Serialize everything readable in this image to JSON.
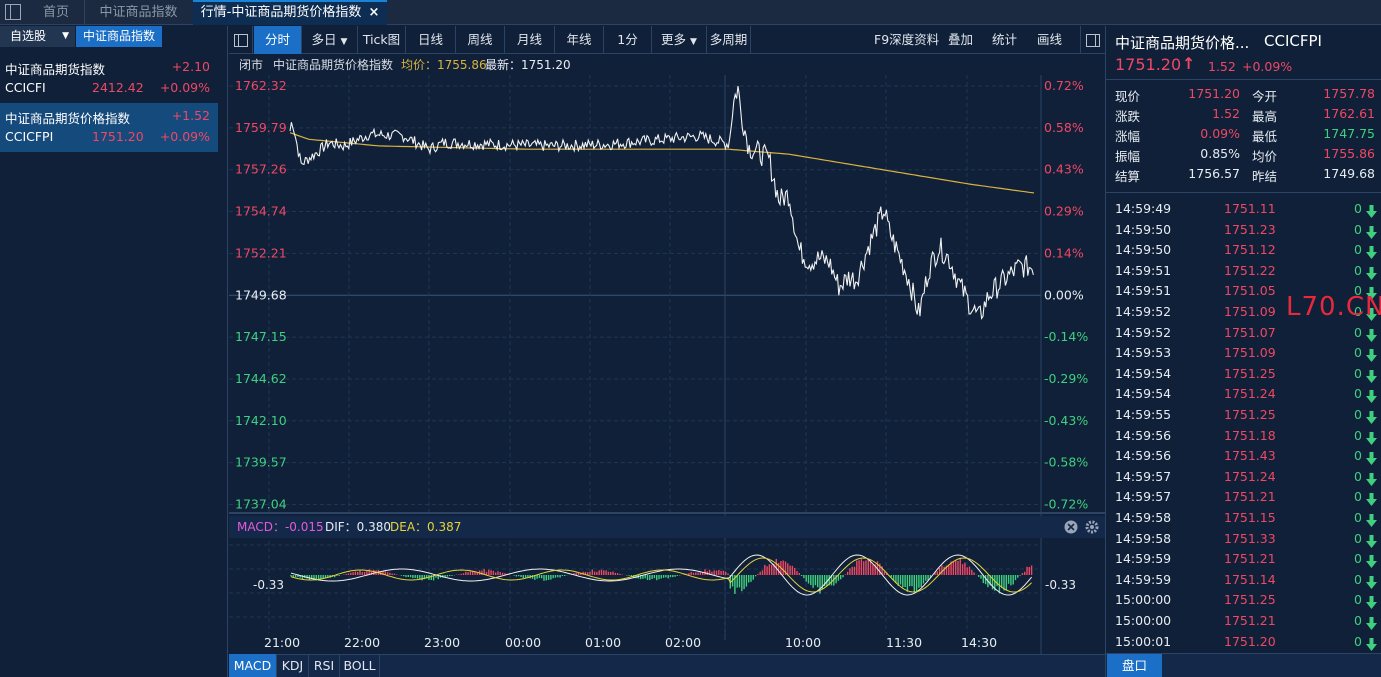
{
  "tabs": [
    {
      "label": "首页"
    },
    {
      "label": "中证商品指数"
    },
    {
      "label": "行情-中证商品期货价格指数"
    }
  ],
  "close_glyph": "×",
  "left": {
    "tab_watchlist": "自选股",
    "tab_watchlist_arrow": "▼",
    "tab_index": "中证商品指数",
    "rows": [
      {
        "name": "中证商品期货指数",
        "code": "CCICFI",
        "price": "2412.42",
        "change": "+2.10",
        "pct": "+0.09%"
      },
      {
        "name": "中证商品期货价格指数",
        "code": "CCICFPI",
        "price": "1751.20",
        "change": "+1.52",
        "pct": "+0.09%"
      }
    ]
  },
  "toolbar": {
    "items": [
      "分时",
      "多日",
      "Tick图",
      "日线",
      "周线",
      "月线",
      "年线",
      "1分",
      "更多",
      "多周期"
    ],
    "dropdown_arrow": "▼",
    "right": [
      "F9深度资料",
      "叠加",
      "统计",
      "画线"
    ]
  },
  "info": {
    "status": "闭市",
    "name": "中证商品期货价格指数",
    "avg_label": "均价：1755.86",
    "last_label": "最新：1751.20"
  },
  "axes": {
    "price_ticks": [
      "1762.32",
      "1759.79",
      "1757.26",
      "1754.74",
      "1752.21",
      "1749.68",
      "1747.15",
      "1744.62",
      "1742.10",
      "1739.57",
      "1737.04"
    ],
    "pct_ticks": [
      "0.72%",
      "0.58%",
      "0.43%",
      "0.29%",
      "0.14%",
      "0.00%",
      "-0.14%",
      "-0.29%",
      "-0.43%",
      "-0.58%",
      "-0.72%"
    ],
    "time_ticks": [
      "21:00",
      "22:00",
      "23:00",
      "00:00",
      "01:00",
      "02:00",
      "10:00",
      "11:30",
      "14:30"
    ],
    "macd_ticks_left": "-0.33",
    "macd_ticks_right": "-0.33"
  },
  "macd": {
    "label": "MACD：-0.015",
    "dif": "DIF：0.380",
    "dea": "DEA：0.387"
  },
  "bottom_tabs": [
    "MACD",
    "KDJ",
    "RSI",
    "BOLL"
  ],
  "right": {
    "title": "中证商品期货价格...",
    "code": "CCICFPI",
    "price": "1751.20",
    "arrow": "↑",
    "change": "1.52",
    "pct": "+0.09%",
    "stats": [
      {
        "k": "现价",
        "v": "1751.20",
        "k2": "今开",
        "v2": "1757.78"
      },
      {
        "k": "涨跌",
        "v": "1.52",
        "k2": "最高",
        "v2": "1762.61"
      },
      {
        "k": "涨幅",
        "v": "0.09%",
        "k2": "最低",
        "v2": "1747.75"
      },
      {
        "k": "振幅",
        "v": "0.85%",
        "k2": "均价",
        "v2": "1755.86"
      },
      {
        "k": "结算",
        "v": "1756.57",
        "k2": "昨结",
        "v2": "1749.68"
      }
    ],
    "trades": [
      [
        "14:59:49",
        "1751.11",
        "0"
      ],
      [
        "14:59:50",
        "1751.23",
        "0"
      ],
      [
        "14:59:50",
        "1751.12",
        "0"
      ],
      [
        "14:59:51",
        "1751.22",
        "0"
      ],
      [
        "14:59:51",
        "1751.05",
        "0"
      ],
      [
        "14:59:52",
        "1751.09",
        "0"
      ],
      [
        "14:59:52",
        "1751.07",
        "0"
      ],
      [
        "14:59:53",
        "1751.09",
        "0"
      ],
      [
        "14:59:54",
        "1751.25",
        "0"
      ],
      [
        "14:59:54",
        "1751.24",
        "0"
      ],
      [
        "14:59:55",
        "1751.25",
        "0"
      ],
      [
        "14:59:56",
        "1751.18",
        "0"
      ],
      [
        "14:59:56",
        "1751.43",
        "0"
      ],
      [
        "14:59:57",
        "1751.24",
        "0"
      ],
      [
        "14:59:57",
        "1751.21",
        "0"
      ],
      [
        "14:59:58",
        "1751.15",
        "0"
      ],
      [
        "14:59:58",
        "1751.33",
        "0"
      ],
      [
        "14:59:59",
        "1751.21",
        "0"
      ],
      [
        "14:59:59",
        "1751.14",
        "0"
      ],
      [
        "15:00:00",
        "1751.25",
        "0"
      ],
      [
        "15:00:00",
        "1751.21",
        "0"
      ],
      [
        "15:00:01",
        "1751.20",
        "0"
      ]
    ],
    "watermark": "L70.CN",
    "bottom_btn": "盘口"
  },
  "colors": {
    "up": "#f04864",
    "down": "#3fd07f",
    "accent": "#1b6fc6",
    "avg": "#d9b340"
  }
}
